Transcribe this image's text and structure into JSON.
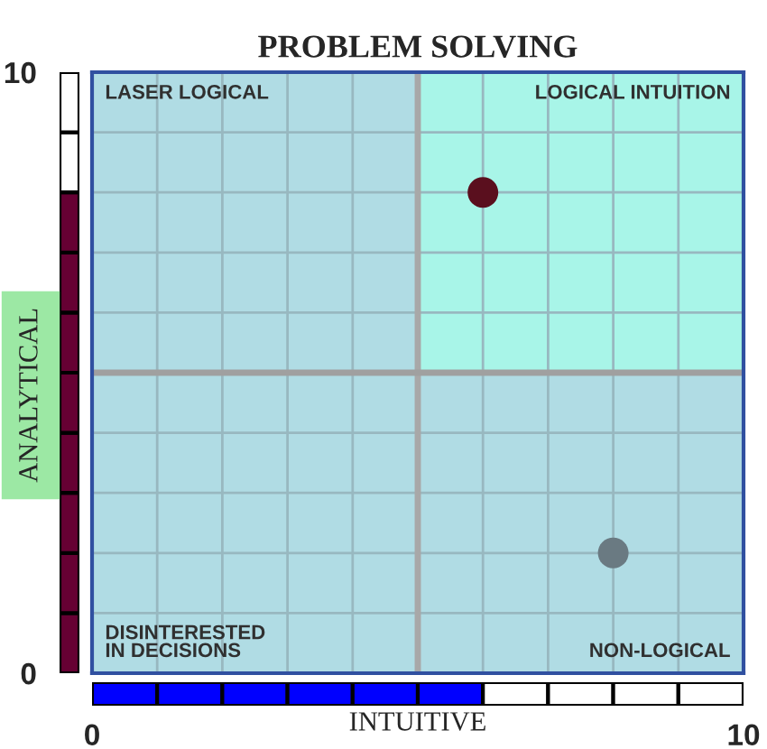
{
  "chart_data": {
    "type": "scatter",
    "title": "PROBLEM SOLVING",
    "xlabel": "INTUITIVE",
    "ylabel": "ANALYTICAL",
    "annotations": [
      "LASER LOGICAL",
      "LOGICAL INTUITION",
      "DISINTERESTED\nIN DECISIONS",
      "NON-LOGICAL"
    ],
    "series": [
      {
        "color": "#5a0f1e",
        "x": [
          6
        ],
        "values": [
          8
        ]
      },
      {
        "color": "#6a7a82",
        "x": [
          8
        ],
        "values": [
          2
        ]
      }
    ],
    "xlim": [
      0,
      10
    ],
    "ylim": [
      0,
      10
    ],
    "xticks": [
      0,
      {
        "value": 1,
        "label": null
      },
      {
        "value": 2,
        "label": null
      },
      {
        "value": 3,
        "label": null
      },
      {
        "value": 4,
        "label": null
      },
      {
        "value": 6,
        "label": null
      },
      {
        "value": 7,
        "label": null
      },
      {
        "value": 8,
        "label": null
      },
      {
        "value": 9,
        "label": null
      },
      10
    ],
    "yticks": [
      0,
      {
        "value": 1,
        "label": null
      },
      {
        "value": 2,
        "label": null
      },
      {
        "value": 3,
        "label": null
      },
      {
        "value": 4,
        "label": null
      },
      {
        "value": 6,
        "label": null
      },
      {
        "value": 7,
        "label": null
      },
      {
        "value": 8,
        "label": null
      },
      {
        "value": 9,
        "label": null
      },
      10
    ],
    "ref_lines": [
      {
        "axis": "x",
        "value": 5,
        "color": "#a8a8a8"
      },
      {
        "axis": "y",
        "value": 5,
        "color": "#a0a0a0"
      }
    ],
    "grid": true,
    "marker": "circle"
  }
}
